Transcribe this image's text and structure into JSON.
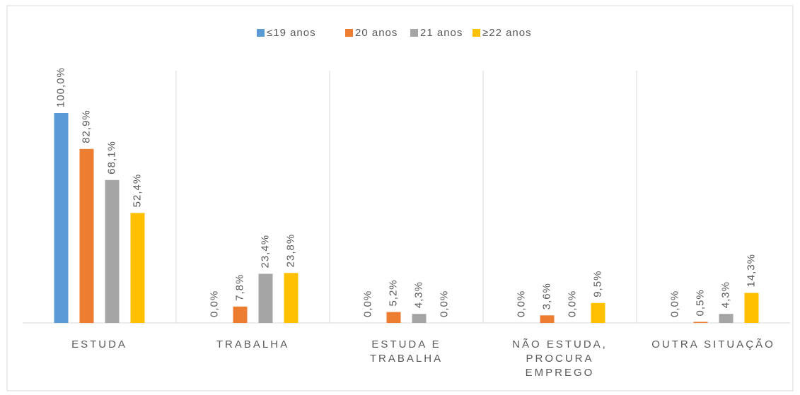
{
  "chart_data": {
    "type": "bar",
    "categories": [
      "ESTUDA",
      "TRABALHA",
      "ESTUDA E TRABALHA",
      "NÃO ESTUDA, PROCURA EMPREGO",
      "OUTRA SITUAÇÃO"
    ],
    "series": [
      {
        "name": "≤19 anos",
        "color": "#5b9bd5",
        "values": [
          100.0,
          0.0,
          0.0,
          0.0,
          0.0
        ],
        "value_labels": [
          "100,0%",
          "0,0%",
          "0,0%",
          "0,0%",
          "0,0%"
        ]
      },
      {
        "name": "20 anos",
        "color": "#ed7d31",
        "values": [
          82.9,
          7.8,
          5.2,
          3.6,
          0.5
        ],
        "value_labels": [
          "82,9%",
          "7,8%",
          "5,2%",
          "3,6%",
          "0,5%"
        ]
      },
      {
        "name": "21 anos",
        "color": "#a5a5a5",
        "values": [
          68.1,
          23.4,
          4.3,
          0.0,
          4.3
        ],
        "value_labels": [
          "68,1%",
          "23,4%",
          "4,3%",
          "0,0%",
          "4,3%"
        ]
      },
      {
        "name": "≥22 anos",
        "color": "#ffc000",
        "values": [
          52.4,
          23.8,
          0.0,
          9.5,
          14.3
        ],
        "value_labels": [
          "52,4%",
          "23,8%",
          "0,0%",
          "9,5%",
          "14,3%"
        ]
      }
    ],
    "legend": "top"
  }
}
